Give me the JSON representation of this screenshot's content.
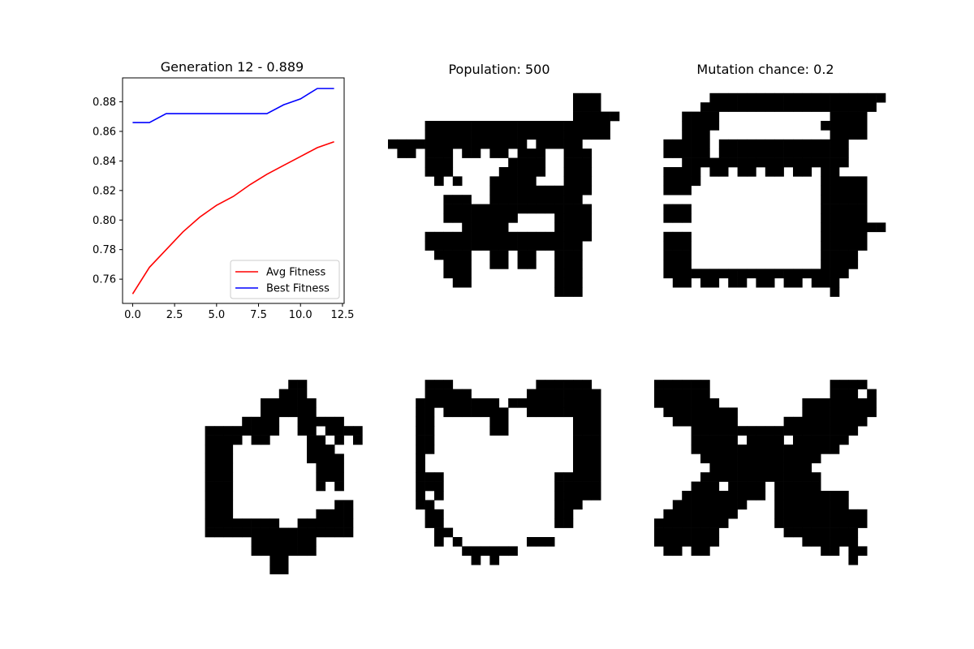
{
  "titles": {
    "chart": "Generation 12 - 0.889",
    "population": "Population: 500",
    "mutation": "Mutation chance: 0.2"
  },
  "colors": {
    "avg": "#ff0000",
    "best": "#0000ff",
    "cell": "#000000",
    "background": "#ffffff"
  },
  "chart_data": {
    "type": "line",
    "title": "Generation 12 - 0.889",
    "xlabel": "",
    "ylabel": "",
    "xlim": [
      -0.6,
      12.6
    ],
    "ylim": [
      0.7436,
      0.8962
    ],
    "grid": false,
    "legend_position": "lower-right",
    "x_ticks": [
      0.0,
      2.5,
      5.0,
      7.5,
      10.0,
      12.5
    ],
    "x_tick_labels": [
      "0.0",
      "2.5",
      "5.0",
      "7.5",
      "10.0",
      "12.5"
    ],
    "y_ticks": [
      0.76,
      0.78,
      0.8,
      0.82,
      0.84,
      0.86,
      0.88
    ],
    "y_tick_labels": [
      "0.76",
      "0.78",
      "0.80",
      "0.82",
      "0.84",
      "0.86",
      "0.88"
    ],
    "x": [
      0,
      1,
      2,
      3,
      4,
      5,
      6,
      7,
      8,
      9,
      10,
      11,
      12
    ],
    "series": [
      {
        "name": "Avg Fitness",
        "color": "#ff0000",
        "values": [
          0.75,
          0.768,
          0.78,
          0.792,
          0.802,
          0.81,
          0.816,
          0.824,
          0.831,
          0.837,
          0.843,
          0.849,
          0.853
        ]
      },
      {
        "name": "Best Fitness",
        "color": "#0000ff",
        "values": [
          0.866,
          0.866,
          0.872,
          0.872,
          0.872,
          0.872,
          0.872,
          0.872,
          0.872,
          0.878,
          0.882,
          0.889,
          0.889
        ]
      }
    ]
  },
  "grids": [
    {
      "name": "top-middle",
      "rows": [
        "000000000000000000000000000",
        "000000000000000000000000000",
        "000000000000000000001110000",
        "000000000000000000001110000",
        "000000000000000000001111100",
        "000011111111111111111111000",
        "000011111111111111111111000",
        "111111111111111011111000000",
        "011011101101101110011100000",
        "000011100000011110011100000",
        "000011100000111110011100000",
        "000001010001111100011100000",
        "000000000001111111111100000",
        "000000111001111111111000000",
        "000000111111111111111100000",
        "000000111111110000111100000",
        "000000001111100000111100000",
        "000011111111111111111100000",
        "000011111111111111111000000",
        "000001111001101100111000000",
        "000000111001101100111000000",
        "000000111000000000111000000",
        "000000011000000000111000000",
        "000000000000000000111000000"
      ]
    },
    {
      "name": "top-right",
      "rows": [
        "000000000000000000000000000",
        "000000000000000000000000000",
        "000000111111111111111111100",
        "000001111111111111111111000",
        "000111100000000000011110000",
        "000111100000000000111110000",
        "000111000000000000011110000",
        "011111011111111111111000000",
        "011111011111111111111000000",
        "000111111111111111111000000",
        "011110110110110110110000000",
        "011110000000000000111110000",
        "011100000000000000111110000",
        "000000000000000000111110000",
        "011100000000000000111110000",
        "011100000000000000111110000",
        "000000000000000000111111100",
        "011100000000000000111110000",
        "011100000000000000111110000",
        "011100000000000000111100000",
        "011100000000000000111100000",
        "011111111111111111111000000",
        "001101101101101101110000000",
        "000000000000000000010000000"
      ]
    },
    {
      "name": "bottom-left",
      "rows": [
        "000000000000000000000000000",
        "000000000000000000000000000",
        "000000000000000000000000000",
        "000000000000000000110000000",
        "000000000000000001110000000",
        "000000000000000111111000000",
        "000000000000000111111000000",
        "000000000000011110011111000",
        "000000000111111110011011110",
        "000000000111101100001101010",
        "000000000111000000001110000",
        "000000000111000000001111000",
        "000000000111000000000111000",
        "000000000111000000000111000",
        "000000000111000000000101000",
        "000000000111000000000000000",
        "000000000111000000000001100",
        "000000000111000000000111100",
        "000000000111111110011111100",
        "000000000111111111111111100",
        "000000000000001111111000000",
        "000000000000001111111000000",
        "000000000000000011000000000",
        "000000000000000011000000000"
      ]
    },
    {
      "name": "bottom-middle",
      "rows": [
        "000000000000000000000000000",
        "000000000000000000000000000",
        "000000000000000000000000000",
        "000011100000000011111100000",
        "000011111000000111111110000",
        "000111111111011111111110000",
        "000110111111100111111110000",
        "000110000001100000001110000",
        "000110000001100000001110000",
        "000110000000000000001110000",
        "000110000000000000001110000",
        "000100000000000000001110000",
        "000100000000000000001110000",
        "000111000000000000111110000",
        "000111000000000000111110000",
        "000101000000000000111110000",
        "000110000000000000111000000",
        "000011000000000000110000000",
        "000011000000000000110000000",
        "000001100000000000000000000",
        "000001010000000111000000000",
        "000000001111110000000000000",
        "000000000101000000000000000",
        "000000000000000000000000000"
      ]
    },
    {
      "name": "bottom-right",
      "rows": [
        "000000000000000000000000000",
        "000000000000000000000000000",
        "000000000000000000000000000",
        "111111000000000000011110000",
        "111111000000000000011101000",
        "111111100000000011111111000",
        "011111111000000011111111000",
        "001111111000001111111110000",
        "000011111111111111111100000",
        "000011111011110111111000000",
        "000011111111111111110000000",
        "000001111111111111000000000",
        "000000111111111110000000000",
        "000001111111111111000000000",
        "000011101111011111000000000",
        "000111111111011111111000000",
        "001111111100011111111000000",
        "011111111000011111111110000",
        "111111110000011111111110000",
        "111111100000001111111100000",
        "111111100000000011111100000",
        "011011000000000000110110000",
        "000000000000000000000100000",
        "000000000000000000000000000"
      ]
    }
  ]
}
